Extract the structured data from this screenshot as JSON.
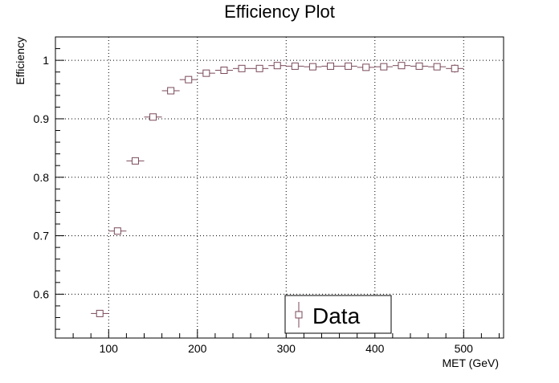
{
  "chart_data": {
    "type": "scatter",
    "title": "Efficiency Plot",
    "xlabel": "MET (GeV)",
    "ylabel": "Efficiency",
    "xlim": [
      40,
      545
    ],
    "ylim": [
      0.525,
      1.04
    ],
    "x_ticks": [
      100,
      200,
      300,
      400,
      500
    ],
    "y_ticks": [
      0.6,
      0.7,
      0.8,
      0.9,
      1
    ],
    "grid": true,
    "legend_position": "bottom-center",
    "marker": "open-square",
    "series": [
      {
        "name": "Data",
        "color": "#7a4a5a",
        "x": [
          90,
          110,
          130,
          150,
          170,
          190,
          210,
          230,
          250,
          270,
          290,
          310,
          330,
          350,
          370,
          390,
          410,
          430,
          450,
          470,
          490
        ],
        "x_err": [
          10,
          10,
          10,
          10,
          10,
          10,
          10,
          10,
          10,
          10,
          10,
          10,
          10,
          10,
          10,
          10,
          10,
          10,
          10,
          10,
          10
        ],
        "y": [
          0.567,
          0.708,
          0.828,
          0.903,
          0.948,
          0.967,
          0.978,
          0.983,
          0.986,
          0.986,
          0.991,
          0.99,
          0.989,
          0.99,
          0.99,
          0.988,
          0.989,
          0.991,
          0.99,
          0.989,
          0.986
        ],
        "y_err": [
          0.005,
          0.005,
          0.004,
          0.004,
          0.004,
          0.004,
          0.003,
          0.003,
          0.003,
          0.003,
          0.003,
          0.003,
          0.003,
          0.003,
          0.003,
          0.003,
          0.003,
          0.004,
          0.004,
          0.004,
          0.007
        ]
      }
    ]
  }
}
